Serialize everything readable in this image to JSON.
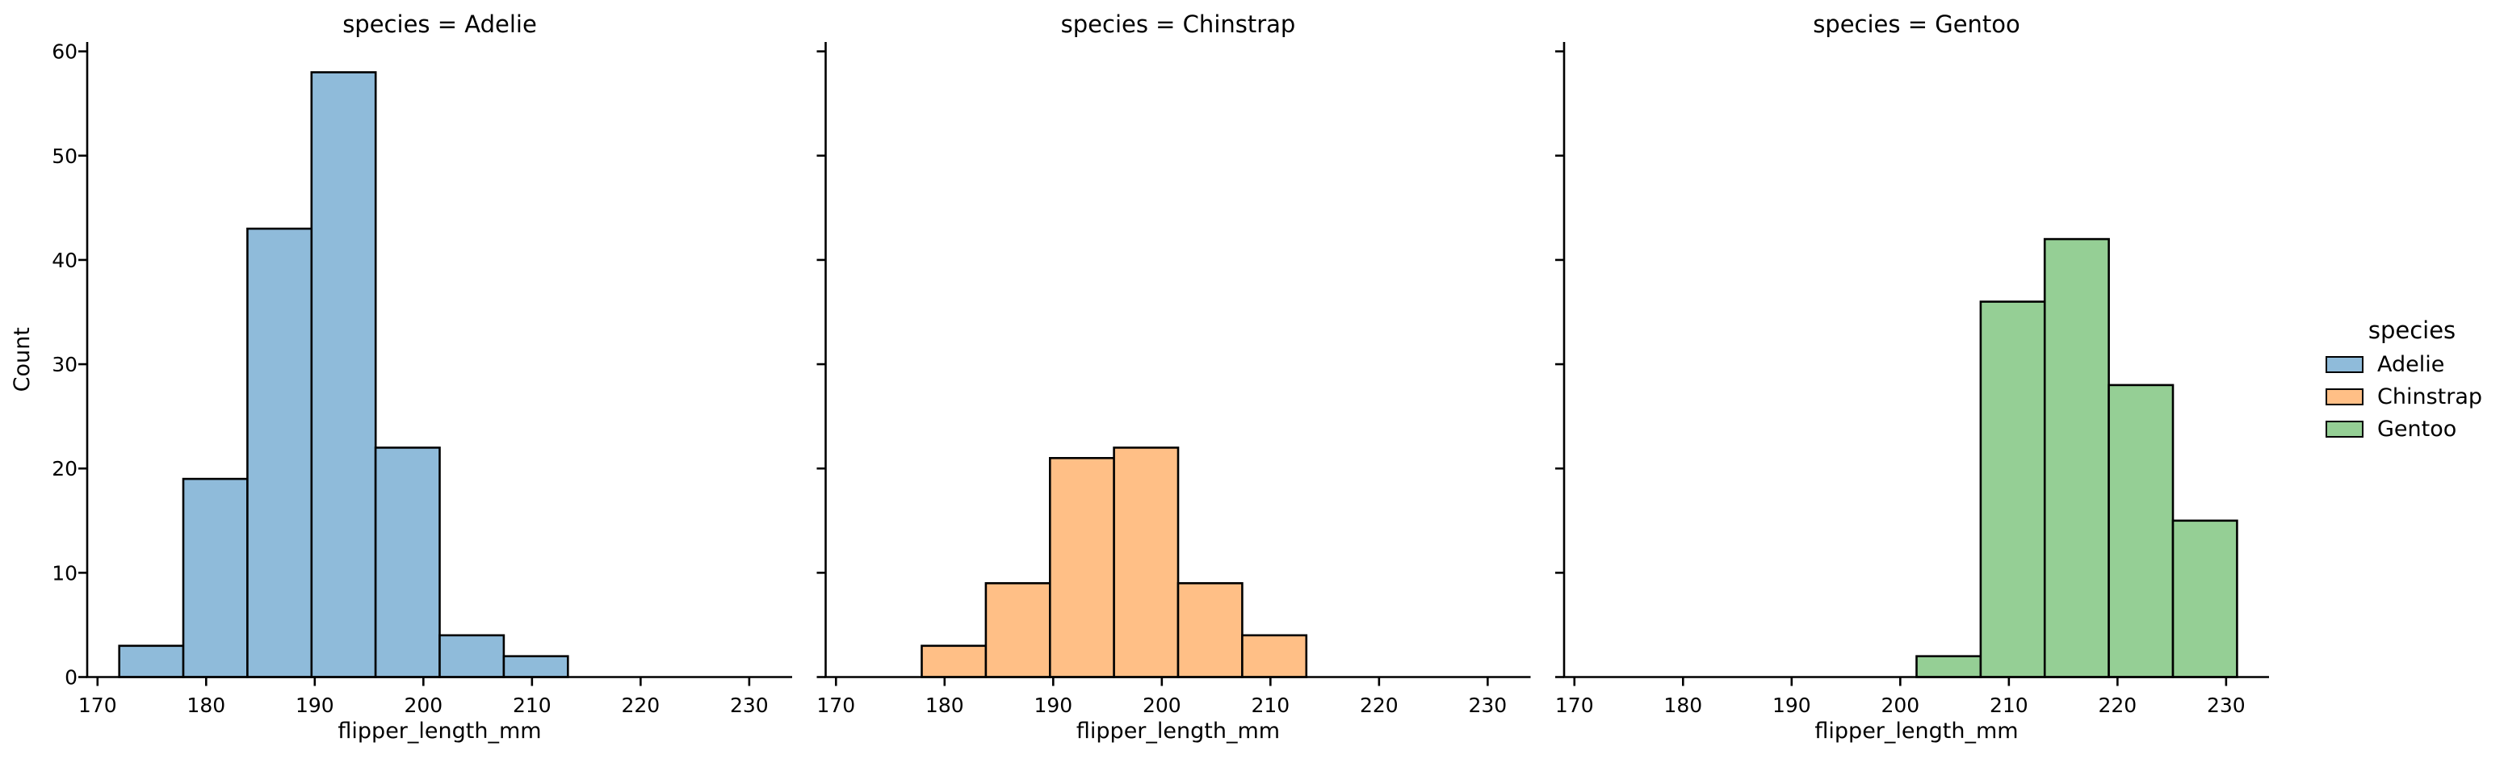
{
  "chart_data": {
    "type": "bar",
    "subtype": "faceted-histogram",
    "x_variable": "flipper_length_mm",
    "y_variable": "Count",
    "xlabel": "flipper_length_mm",
    "ylabel": "Count",
    "bin_edges": [
      172.0,
      177.9,
      183.8,
      189.7,
      195.6,
      201.5,
      207.4,
      213.3,
      219.2,
      225.1,
      231.0
    ],
    "facets": [
      {
        "title": "species = Adelie",
        "species": "Adelie",
        "color": "#8fbbda",
        "counts": [
          3,
          19,
          43,
          58,
          22,
          4,
          2,
          0,
          0,
          0
        ]
      },
      {
        "title": "species = Chinstrap",
        "species": "Chinstrap",
        "color": "#ffbf86",
        "counts": [
          0,
          3,
          9,
          21,
          22,
          9,
          4,
          0,
          0,
          0
        ]
      },
      {
        "title": "species = Gentoo",
        "species": "Gentoo",
        "color": "#95cf95",
        "counts": [
          0,
          0,
          0,
          0,
          0,
          2,
          36,
          42,
          28,
          15
        ]
      }
    ],
    "xticks": [
      170,
      180,
      190,
      200,
      210,
      220,
      230
    ],
    "yticks": [
      0,
      10,
      20,
      30,
      40,
      50,
      60
    ],
    "xlim": [
      169.05,
      233.95
    ],
    "ylim": [
      0,
      60.9
    ],
    "bar_edge_color": "#000000",
    "axis_color": "#000000",
    "grid": false,
    "legend_position": "right"
  },
  "legend": {
    "title": "species",
    "entries": [
      {
        "label": "Adelie",
        "color": "#8fbbda"
      },
      {
        "label": "Chinstrap",
        "color": "#ffbf86"
      },
      {
        "label": "Gentoo",
        "color": "#95cf95"
      }
    ]
  }
}
